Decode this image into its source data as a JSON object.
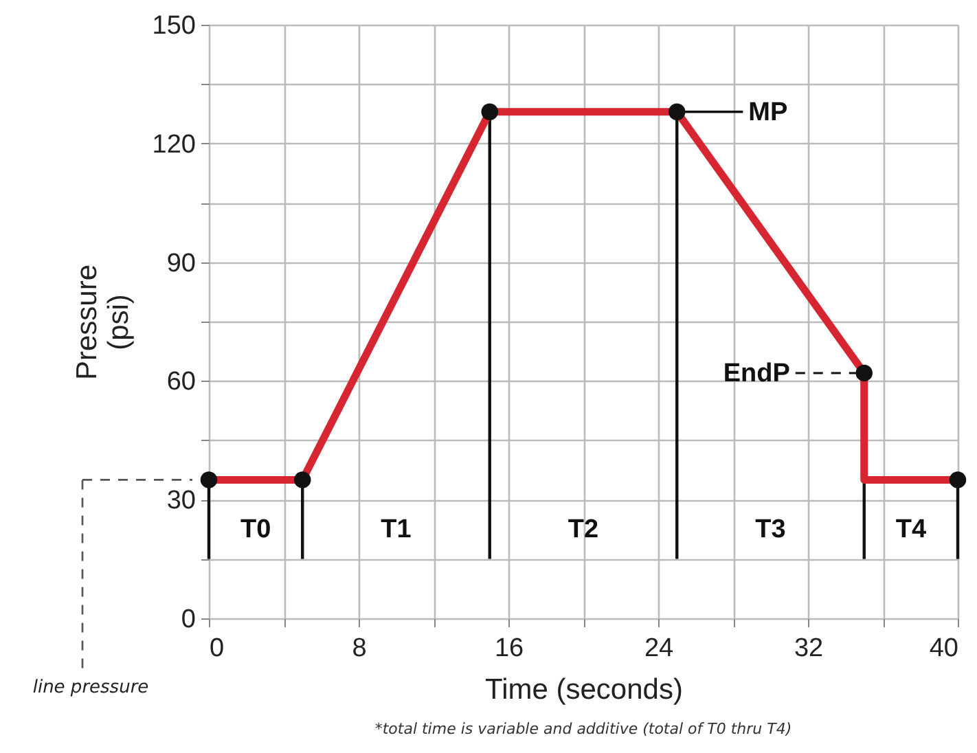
{
  "chart_data": {
    "type": "line",
    "xlabel": "Time (seconds)",
    "ylabel": "Pressure (psi)",
    "series": [
      {
        "type": "line",
        "color": "#d62631",
        "x": [
          0,
          5,
          15,
          25,
          35,
          35,
          40
        ],
        "values": [
          35,
          35,
          128,
          128,
          62,
          35,
          35
        ],
        "marker": "none",
        "line_style": "solid"
      },
      {
        "type": "scatter",
        "color": "#111111",
        "x": [
          0,
          5,
          15,
          25,
          35,
          40
        ],
        "values": [
          35,
          35,
          128,
          128,
          62,
          35
        ],
        "marker": "circle"
      }
    ],
    "xlim": [
      0,
      40
    ],
    "ylim": [
      0,
      150
    ],
    "xticks": [
      0,
      {
        "value": 4,
        "label": null
      },
      8,
      {
        "value": 12,
        "label": null
      },
      16,
      {
        "value": 20,
        "label": null
      },
      24,
      {
        "value": 28,
        "label": null
      },
      32,
      {
        "value": 36,
        "label": null
      },
      40
    ],
    "yticks": [
      0,
      {
        "value": 15,
        "label": null
      },
      30,
      {
        "value": 45,
        "label": null
      },
      60,
      {
        "value": 75,
        "label": null
      },
      90,
      {
        "value": 105,
        "label": null
      },
      120,
      {
        "value": 135,
        "label": null
      },
      150
    ],
    "grid": true,
    "ref_lines": [
      {
        "axis": "x",
        "value": 0,
        "color": "#111111"
      },
      {
        "axis": "x",
        "value": 5,
        "color": "#111111"
      },
      {
        "axis": "x",
        "value": 15,
        "color": "#111111"
      },
      {
        "axis": "x",
        "value": 25,
        "color": "#111111"
      },
      {
        "axis": "x",
        "value": 35,
        "color": "#111111"
      },
      {
        "axis": "x",
        "value": 40,
        "color": "#111111"
      }
    ],
    "annotations": [
      "T0",
      "T1",
      "T2",
      "T3",
      "T4",
      {
        "text": "MP",
        "x": 25,
        "y": 128
      },
      {
        "text": "EndP",
        "x": 35,
        "y": 62
      },
      "line pressure",
      "*total time is variable and additive (total of T0 thru T4)"
    ]
  }
}
